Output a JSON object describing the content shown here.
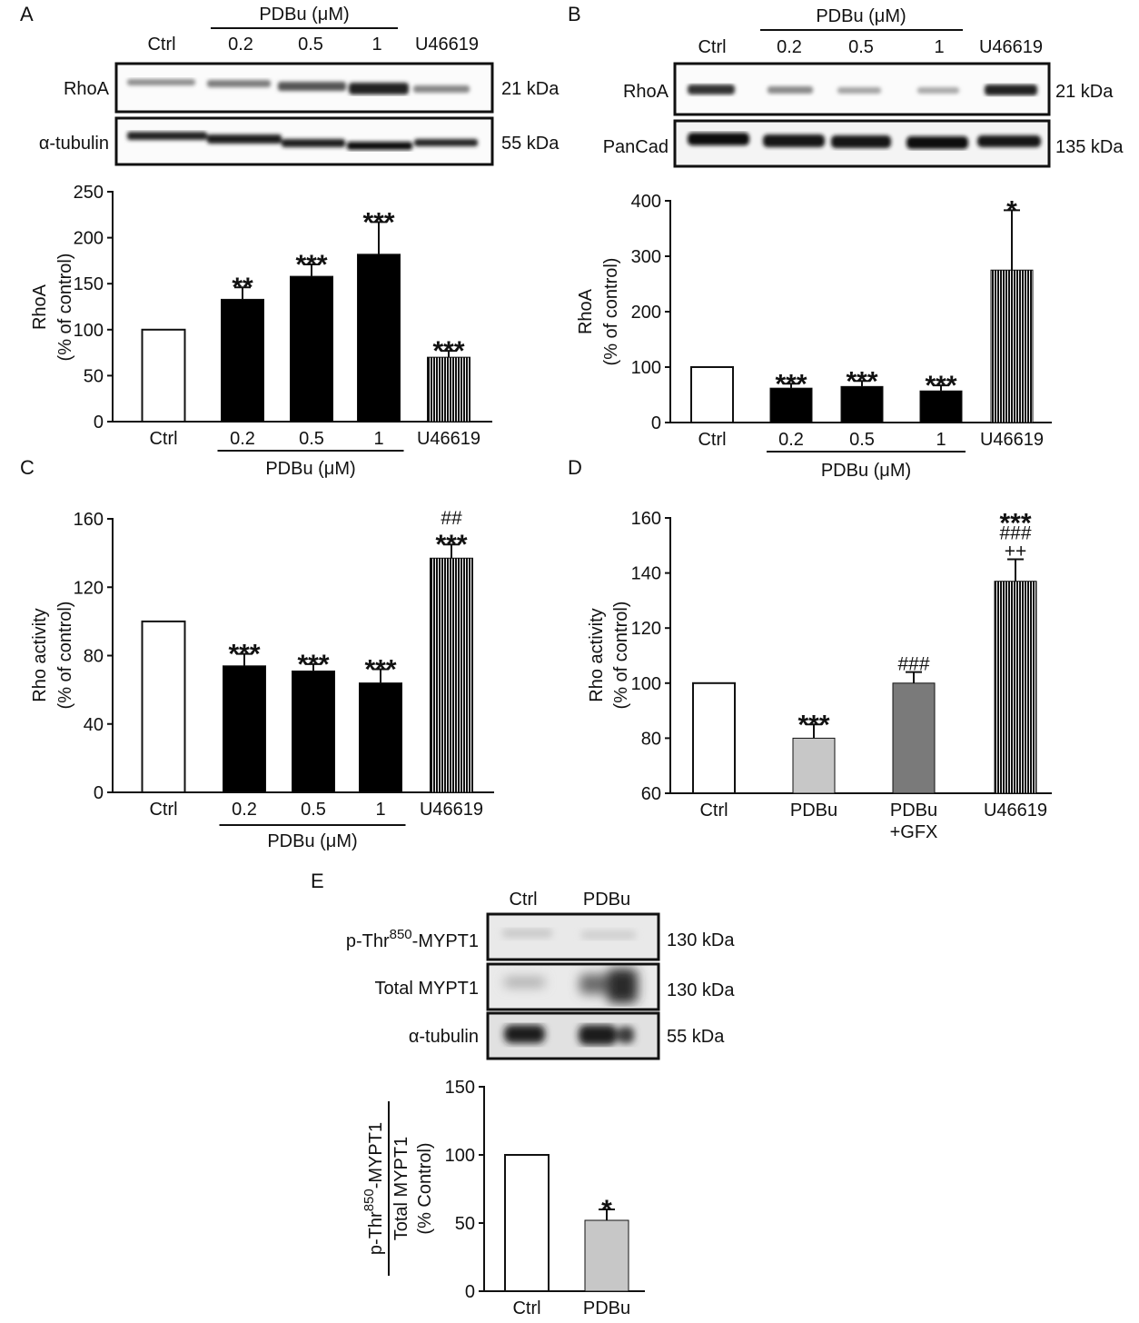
{
  "panels": {
    "A": {
      "letter": "A",
      "blot": {
        "group_label": "PDBu (μM)",
        "lanes": [
          "Ctrl",
          "0.2",
          "0.5",
          "1",
          "U46619"
        ],
        "rows": [
          {
            "name": "RhoA",
            "mw": "21 kDa"
          },
          {
            "name": "α-tubulin",
            "mw": "55 kDa"
          }
        ]
      }
    },
    "B": {
      "letter": "B",
      "blot": {
        "group_label": "PDBu (μM)",
        "lanes": [
          "Ctrl",
          "0.2",
          "0.5",
          "1",
          "U46619"
        ],
        "rows": [
          {
            "name": "RhoA",
            "mw": "21 kDa"
          },
          {
            "name": "PanCad",
            "mw": "135 kDa"
          }
        ]
      }
    },
    "C": {
      "letter": "C"
    },
    "D": {
      "letter": "D"
    },
    "E": {
      "letter": "E",
      "blot": {
        "lanes": [
          "Ctrl",
          "PDBu"
        ],
        "rows": [
          {
            "name_prefix": "p-Thr",
            "name_sup": "850",
            "name_suffix": "-MYPT1",
            "mw": "130 kDa"
          },
          {
            "name": "Total MYPT1",
            "mw": "130 kDa"
          },
          {
            "name": "α-tubulin",
            "mw": "55 kDa"
          }
        ]
      }
    }
  },
  "chart_data": [
    {
      "panel": "A",
      "type": "bar",
      "ylabel_lines": [
        "RhoA",
        "(% of control)"
      ],
      "ylim": [
        0,
        250
      ],
      "yticks": [
        0,
        50,
        100,
        150,
        200,
        250
      ],
      "categories": [
        "Ctrl",
        "0.2",
        "0.5",
        "1",
        "U46619"
      ],
      "values": [
        100,
        133,
        158,
        182,
        70
      ],
      "errors": [
        0,
        13,
        13,
        35,
        7
      ],
      "fills": [
        "white",
        "black",
        "black",
        "black",
        "hatch"
      ],
      "annotations": [
        [],
        [
          "**"
        ],
        [
          "***"
        ],
        [
          "***"
        ],
        [
          "***"
        ]
      ],
      "group_label": "PDBu (μM)",
      "group_span": [
        1,
        3
      ]
    },
    {
      "panel": "B",
      "type": "bar",
      "ylabel_lines": [
        "RhoA",
        "(% of control)"
      ],
      "ylim": [
        0,
        400
      ],
      "yticks": [
        0,
        100,
        200,
        300,
        400
      ],
      "categories": [
        "Ctrl",
        "0.2",
        "0.5",
        "1",
        "U46619"
      ],
      "values": [
        100,
        62,
        65,
        57,
        275
      ],
      "errors": [
        0,
        8,
        10,
        10,
        108
      ],
      "fills": [
        "white",
        "black",
        "black",
        "black",
        "hatch"
      ],
      "annotations": [
        [],
        [
          "***"
        ],
        [
          "***"
        ],
        [
          "***"
        ],
        [
          "*"
        ]
      ],
      "group_label": "PDBu (μM)",
      "group_span": [
        1,
        3
      ]
    },
    {
      "panel": "C",
      "type": "bar",
      "ylabel_lines": [
        "Rho activity",
        "(% of control)"
      ],
      "ylim": [
        0,
        160
      ],
      "yticks": [
        0,
        40,
        80,
        120,
        160
      ],
      "categories": [
        "Ctrl",
        "0.2",
        "0.5",
        "1",
        "U46619"
      ],
      "values": [
        100,
        74,
        71,
        64,
        137
      ],
      "errors": [
        0,
        7,
        4,
        8,
        8
      ],
      "fills": [
        "white",
        "black",
        "black",
        "black",
        "hatch"
      ],
      "annotations": [
        [],
        [
          "***"
        ],
        [
          "***"
        ],
        [
          "***"
        ],
        [
          "***",
          "##"
        ]
      ],
      "group_label": "PDBu (μM)",
      "group_span": [
        1,
        3
      ]
    },
    {
      "panel": "D",
      "type": "bar",
      "ylabel_lines": [
        "Rho activity",
        "(% of control)"
      ],
      "ylim": [
        60,
        160
      ],
      "yticks": [
        60,
        80,
        100,
        120,
        140,
        160
      ],
      "categories": [
        "Ctrl",
        "PDBu",
        "PDBu\n+GFX",
        "U46619"
      ],
      "values": [
        100,
        80,
        100,
        137
      ],
      "errors": [
        0,
        5,
        4,
        8
      ],
      "fills": [
        "white",
        "#c7c7c7",
        "#7a7a7a",
        "hatch"
      ],
      "annotations": [
        [],
        [
          "***"
        ],
        [
          "###"
        ],
        [
          "++",
          "###",
          "***"
        ]
      ]
    },
    {
      "panel": "E",
      "type": "bar",
      "ylabel_numer_prefix": "p-Thr",
      "ylabel_numer_sup": "850",
      "ylabel_numer_suffix": "-MYPT1",
      "ylabel_denom": "Total MYPT1",
      "ylabel_unit": "(% Control)",
      "ylim": [
        0,
        150
      ],
      "yticks": [
        0,
        50,
        100,
        150
      ],
      "categories": [
        "Ctrl",
        "PDBu"
      ],
      "values": [
        100,
        52
      ],
      "errors": [
        0,
        8
      ],
      "fills": [
        "white",
        "#c7c7c7"
      ],
      "annotations": [
        [],
        [
          "*"
        ]
      ]
    }
  ]
}
